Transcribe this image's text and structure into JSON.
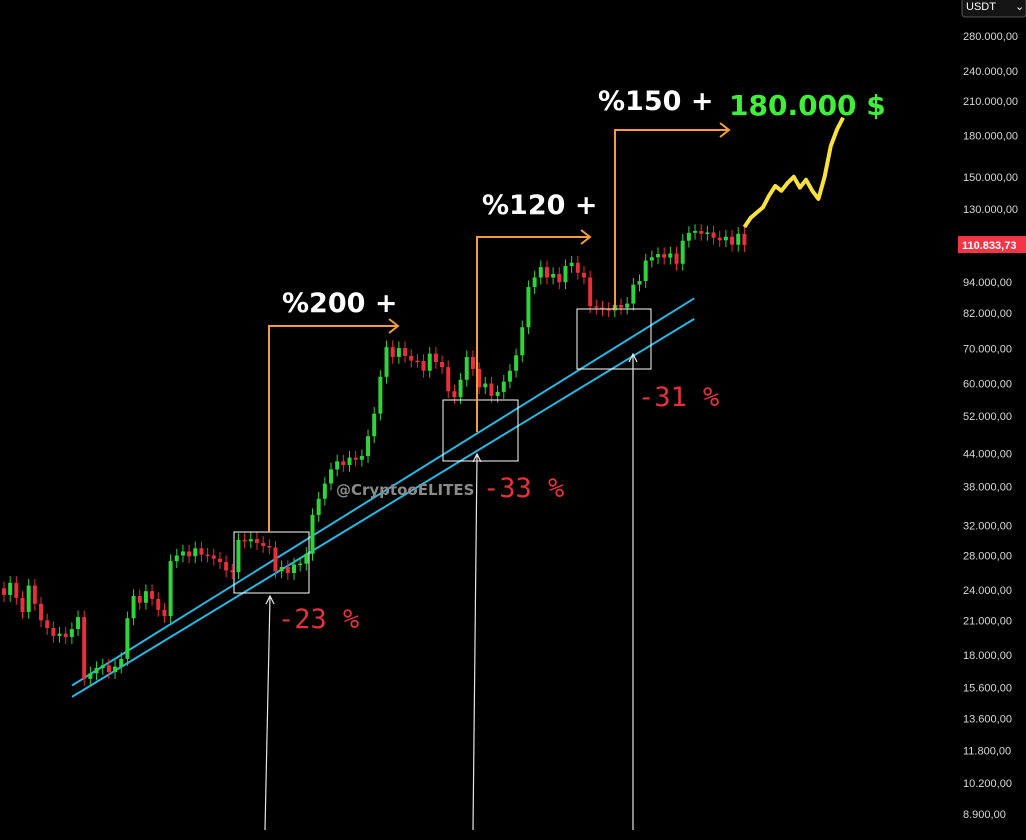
{
  "currency": "USDT",
  "watermark": "@CryptooELITES",
  "current_price": {
    "label": "110.833,73",
    "value": 110833.73,
    "color": "#f23645"
  },
  "colors": {
    "up": "#2fd33c",
    "down": "#e8303a",
    "projection": "#f8e23b",
    "channel": "#27b7e3",
    "arrow": "#f39c3c",
    "box": "#ffffff"
  },
  "annotations": {
    "gains": [
      "%200 +",
      "%120 +",
      "%150 +"
    ],
    "drops": [
      "-23 %",
      "-33 %",
      "-31 %"
    ],
    "target": "180.000 $"
  },
  "chart_data": {
    "type": "line",
    "title": "",
    "xlabel": "",
    "ylabel": "",
    "y_scale": "log",
    "ylim": [
      8500,
      310000
    ],
    "grid": false,
    "y_ticks": [
      {
        "label": "280.000,00",
        "value": 280000
      },
      {
        "label": "240.000,00",
        "value": 240000
      },
      {
        "label": "210.000,00",
        "value": 210000
      },
      {
        "label": "180.000,00",
        "value": 180000
      },
      {
        "label": "150.000,00",
        "value": 150000
      },
      {
        "label": "130.000,00",
        "value": 130000
      },
      {
        "label": "94.000,00",
        "value": 94000
      },
      {
        "label": "82.000,00",
        "value": 82000
      },
      {
        "label": "70.000,00",
        "value": 70000
      },
      {
        "label": "60.000,00",
        "value": 60000
      },
      {
        "label": "52.000,00",
        "value": 52000
      },
      {
        "label": "44.000,00",
        "value": 44000
      },
      {
        "label": "38.000,00",
        "value": 38000
      },
      {
        "label": "32.000,00",
        "value": 32000
      },
      {
        "label": "28.000,00",
        "value": 28000
      },
      {
        "label": "24.000,00",
        "value": 24000
      },
      {
        "label": "21.000,00",
        "value": 21000
      },
      {
        "label": "18.000,00",
        "value": 18000
      },
      {
        "label": "15.600,00",
        "value": 15600
      },
      {
        "label": "13.600,00",
        "value": 13600
      },
      {
        "label": "11.800,00",
        "value": 11800
      },
      {
        "label": "10.200,00",
        "value": 10200
      },
      {
        "label": "8.900,00",
        "value": 8900
      }
    ],
    "series": [
      {
        "kind": "price",
        "points": [
          [
            0,
            23500
          ],
          [
            1,
            24800
          ],
          [
            2,
            23200
          ],
          [
            3,
            21800
          ],
          [
            4,
            24500
          ],
          [
            5,
            22600
          ],
          [
            6,
            21000
          ],
          [
            7,
            20300
          ],
          [
            8,
            19600
          ],
          [
            9,
            19800
          ],
          [
            10,
            19500
          ],
          [
            11,
            20200
          ],
          [
            12,
            21300
          ],
          [
            13,
            16200
          ],
          [
            14,
            16600
          ],
          [
            15,
            17000
          ],
          [
            16,
            17200
          ],
          [
            17,
            16700
          ],
          [
            18,
            17100
          ],
          [
            19,
            17700
          ],
          [
            20,
            21200
          ],
          [
            21,
            23400
          ],
          [
            22,
            22700
          ],
          [
            23,
            23900
          ],
          [
            24,
            23100
          ],
          [
            25,
            22000
          ],
          [
            26,
            21400
          ],
          [
            27,
            27300
          ],
          [
            28,
            28000
          ],
          [
            29,
            28500
          ],
          [
            30,
            27900
          ],
          [
            31,
            28900
          ],
          [
            32,
            28100
          ],
          [
            33,
            28000
          ],
          [
            34,
            27600
          ],
          [
            35,
            27200
          ],
          [
            36,
            26200
          ],
          [
            37,
            26000
          ],
          [
            38,
            30000
          ],
          [
            39,
            29800
          ],
          [
            40,
            30100
          ],
          [
            41,
            29600
          ],
          [
            42,
            29200
          ],
          [
            43,
            29000
          ],
          [
            44,
            26100
          ],
          [
            45,
            26600
          ],
          [
            46,
            25900
          ],
          [
            47,
            26900
          ],
          [
            48,
            27000
          ],
          [
            49,
            28200
          ],
          [
            50,
            33500
          ],
          [
            51,
            36000
          ],
          [
            52,
            38500
          ],
          [
            53,
            41000
          ],
          [
            54,
            42500
          ],
          [
            55,
            41800
          ],
          [
            56,
            43200
          ],
          [
            57,
            42800
          ],
          [
            58,
            43500
          ],
          [
            59,
            47500
          ],
          [
            60,
            52500
          ],
          [
            61,
            61800
          ],
          [
            62,
            70500
          ],
          [
            63,
            67500
          ],
          [
            64,
            70200
          ],
          [
            65,
            67800
          ],
          [
            66,
            66400
          ],
          [
            67,
            66300
          ],
          [
            68,
            63500
          ],
          [
            69,
            68500
          ],
          [
            70,
            66000
          ],
          [
            71,
            64500
          ],
          [
            72,
            58000
          ],
          [
            73,
            56500
          ],
          [
            74,
            61000
          ],
          [
            75,
            67500
          ],
          [
            76,
            64000
          ],
          [
            77,
            59000
          ],
          [
            78,
            60000
          ],
          [
            79,
            56800
          ],
          [
            80,
            57800
          ],
          [
            81,
            60500
          ],
          [
            82,
            63500
          ],
          [
            83,
            68000
          ],
          [
            84,
            77000
          ],
          [
            85,
            92000
          ],
          [
            86,
            96000
          ],
          [
            87,
            100500
          ],
          [
            88,
            96000
          ],
          [
            89,
            97500
          ],
          [
            90,
            94000
          ],
          [
            91,
            101000
          ],
          [
            92,
            102500
          ],
          [
            93,
            98000
          ],
          [
            94,
            96000
          ],
          [
            95,
            84500
          ],
          [
            96,
            84000
          ],
          [
            97,
            83500
          ],
          [
            98,
            83000
          ],
          [
            99,
            85000
          ],
          [
            100,
            84000
          ],
          [
            101,
            85500
          ],
          [
            102,
            93000
          ],
          [
            103,
            94500
          ],
          [
            104,
            103500
          ],
          [
            105,
            105000
          ],
          [
            106,
            106500
          ],
          [
            107,
            104800
          ],
          [
            108,
            106800
          ],
          [
            109,
            102000
          ],
          [
            110,
            113000
          ],
          [
            111,
            117000
          ],
          [
            112,
            118000
          ],
          [
            113,
            116500
          ],
          [
            114,
            117200
          ],
          [
            115,
            114500
          ],
          [
            116,
            113200
          ],
          [
            117,
            115000
          ],
          [
            118,
            111000
          ],
          [
            119,
            116500
          ],
          [
            120,
            110833.73
          ]
        ]
      },
      {
        "kind": "projection",
        "points": [
          [
            120,
            120000
          ],
          [
            121,
            125000
          ],
          [
            122,
            128000
          ],
          [
            123,
            131000
          ],
          [
            124,
            138000
          ],
          [
            125,
            144000
          ],
          [
            126,
            141000
          ],
          [
            127,
            146000
          ],
          [
            128,
            150000
          ],
          [
            129,
            143000
          ],
          [
            130,
            148000
          ],
          [
            131,
            141000
          ],
          [
            132,
            136000
          ],
          [
            133,
            150000
          ],
          [
            134,
            172000
          ],
          [
            135,
            185000
          ],
          [
            136,
            195000
          ]
        ]
      }
    ],
    "channel_lines": [
      {
        "name": "upper",
        "from": [
          0,
          16300
        ],
        "to": [
          119,
          86000
        ]
      },
      {
        "name": "lower",
        "from": [
          0,
          15500
        ],
        "to": [
          119,
          78500
        ]
      }
    ]
  }
}
